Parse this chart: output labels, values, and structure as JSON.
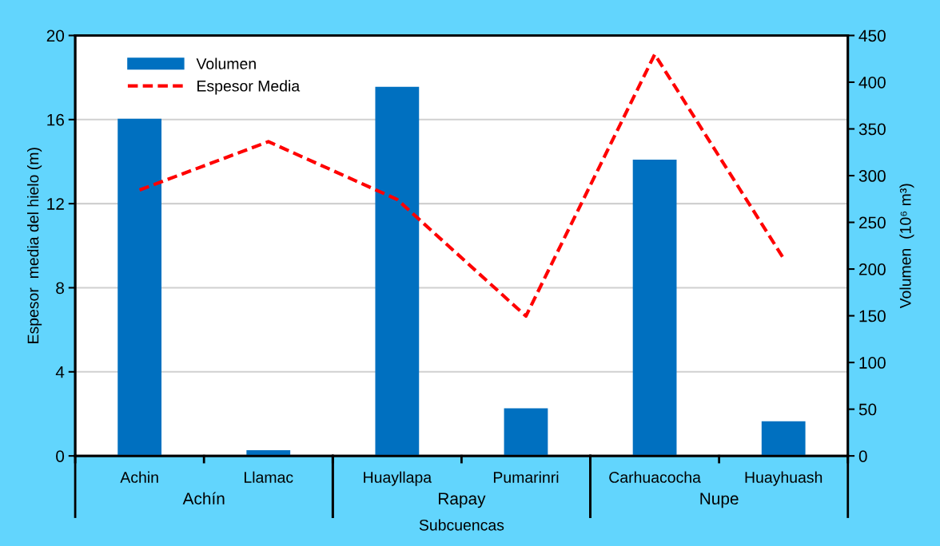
{
  "chart_data": {
    "type": "bar",
    "categories": [
      "Achin",
      "Llamac",
      "Huayllapa",
      "Pumarinri",
      "Carhuacocha",
      "Huayhuash"
    ],
    "xlabel": "Subcuencas",
    "ylabel": "Espesor  media del hielo (m)",
    "y2label": "Volumen  (10⁶ m³)",
    "series": [
      {
        "name": "Volumen",
        "axis": "y2",
        "color": "#0070c0",
        "values": [
          361,
          6,
          395,
          51,
          317,
          37
        ]
      },
      {
        "name": "Espesor Media",
        "type": "line",
        "axis": "y",
        "color": "#ff0000",
        "line_style": "dashed",
        "values": [
          12.65,
          14.95,
          12.2,
          6.65,
          19.1,
          9.4
        ]
      }
    ],
    "annotations": [
      "Achín",
      "Rapay",
      "Nupe"
    ],
    "ylim": [
      0,
      20
    ],
    "yticks": [
      0,
      4,
      8,
      12,
      16,
      20
    ],
    "y2lim": [
      0,
      450
    ],
    "y2ticks": [
      0,
      50,
      100,
      150,
      200,
      250,
      300,
      350,
      400,
      450
    ],
    "grid": "y",
    "legend": "top left"
  }
}
